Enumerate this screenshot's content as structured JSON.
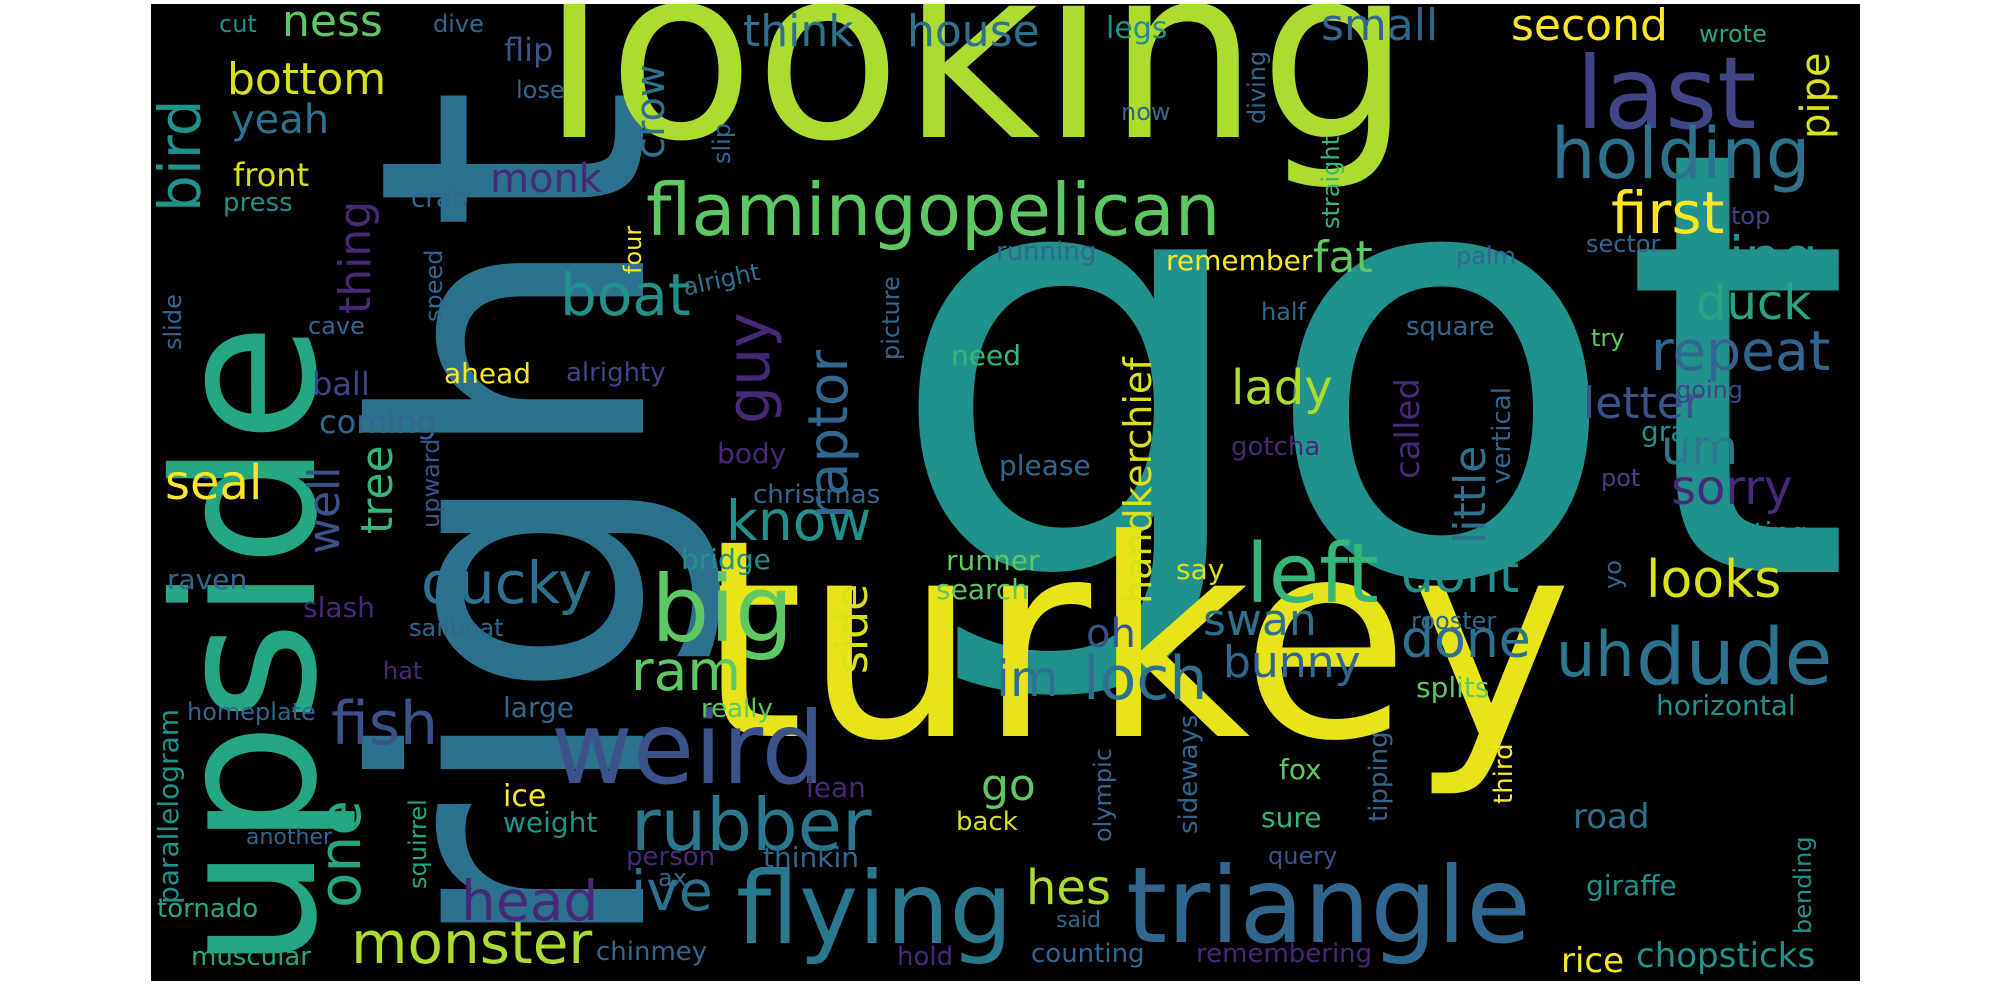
{
  "words": [
    {
      "text": "got",
      "color": "#21918c"
    },
    {
      "text": "turkey",
      "color": "#e7e419"
    },
    {
      "text": "right",
      "color": "#2c728e"
    },
    {
      "text": "looking",
      "color": "#addc30"
    },
    {
      "text": "upside",
      "color": "#26a784"
    },
    {
      "text": "triangle",
      "color": "#31678e"
    },
    {
      "text": "flying",
      "color": "#2a788e"
    },
    {
      "text": "weird",
      "color": "#3b528b"
    },
    {
      "text": "flamingopelican",
      "color": "#5ec962"
    },
    {
      "text": "last",
      "color": "#414487"
    },
    {
      "text": "holding",
      "color": "#2c728e"
    },
    {
      "text": "rubber",
      "color": "#2a788e"
    },
    {
      "text": "big",
      "color": "#5ec962"
    },
    {
      "text": "monster",
      "color": "#addc30"
    },
    {
      "text": "left",
      "color": "#35b779"
    },
    {
      "text": "dude",
      "color": "#2c728e"
    },
    {
      "text": "loch",
      "color": "#2c728e"
    },
    {
      "text": "bird",
      "color": "#21918c"
    },
    {
      "text": "first",
      "color": "#fde725"
    },
    {
      "text": "wing",
      "color": "#21918c"
    },
    {
      "text": "boat",
      "color": "#21918c"
    },
    {
      "text": "know",
      "color": "#21918c"
    },
    {
      "text": "ducky",
      "color": "#2c728e"
    },
    {
      "text": "fish",
      "color": "#3b528b"
    },
    {
      "text": "repeat",
      "color": "#31678e"
    },
    {
      "text": "one",
      "color": "#26a784"
    },
    {
      "text": "guy",
      "color": "#482878"
    },
    {
      "text": "raptor",
      "color": "#31678e"
    },
    {
      "text": "head",
      "color": "#482878"
    },
    {
      "text": "ive",
      "color": "#2c728e"
    },
    {
      "text": "hes",
      "color": "#addc30"
    },
    {
      "text": "ram",
      "color": "#5ec962"
    },
    {
      "text": "uh",
      "color": "#2a788e"
    },
    {
      "text": "dont",
      "color": "#21918c"
    },
    {
      "text": "looks",
      "color": "#d8e219"
    },
    {
      "text": "done",
      "color": "#2c728e"
    },
    {
      "text": "swan",
      "color": "#2c728e"
    },
    {
      "text": "bunny",
      "color": "#31678e"
    },
    {
      "text": "im",
      "color": "#2c728e"
    },
    {
      "text": "duck",
      "color": "#26a784"
    },
    {
      "text": "lady",
      "color": "#addc30"
    },
    {
      "text": "um",
      "color": "#2a788e"
    },
    {
      "text": "sorry",
      "color": "#482878"
    },
    {
      "text": "little",
      "color": "#2c728e"
    },
    {
      "text": "letter",
      "color": "#3b528b"
    },
    {
      "text": "fat",
      "color": "#5ec962"
    },
    {
      "text": "small",
      "color": "#31678e"
    },
    {
      "text": "second",
      "color": "#fde725"
    },
    {
      "text": "house",
      "color": "#2c728e"
    },
    {
      "text": "think",
      "color": "#2c728e"
    },
    {
      "text": "ness",
      "color": "#5ec962"
    },
    {
      "text": "bottom",
      "color": "#d8e219"
    },
    {
      "text": "yeah",
      "color": "#2c728e"
    },
    {
      "text": "monk",
      "color": "#482878"
    },
    {
      "text": "crow",
      "color": "#2c728e"
    },
    {
      "text": "thing",
      "color": "#482878"
    },
    {
      "text": "well",
      "color": "#3b528b"
    },
    {
      "text": "tree",
      "color": "#35b779"
    },
    {
      "text": "seal",
      "color": "#fde725"
    },
    {
      "text": "oh",
      "color": "#3b528b"
    },
    {
      "text": "side",
      "color": "#d8e219"
    },
    {
      "text": "go",
      "color": "#5ec962"
    },
    {
      "text": "handkerchief",
      "color": "#d8e219"
    },
    {
      "text": "pipe",
      "color": "#d8e219"
    },
    {
      "text": "called",
      "color": "#482878"
    },
    {
      "text": "chopsticks",
      "color": "#21918c"
    },
    {
      "text": "rice",
      "color": "#fde725"
    },
    {
      "text": "road",
      "color": "#2c728e"
    },
    {
      "text": "front",
      "color": "#d8e219"
    },
    {
      "text": "flip",
      "color": "#3b528b"
    },
    {
      "text": "legs",
      "color": "#21918c"
    },
    {
      "text": "cut",
      "color": "#21918c"
    },
    {
      "text": "dive",
      "color": "#31678e"
    },
    {
      "text": "wrote",
      "color": "#26a784"
    },
    {
      "text": "lose",
      "color": "#31678e"
    },
    {
      "text": "now",
      "color": "#31678e"
    },
    {
      "text": "diving",
      "color": "#31678e"
    },
    {
      "text": "slip",
      "color": "#31678e"
    },
    {
      "text": "straight",
      "color": "#35b779"
    },
    {
      "text": "top",
      "color": "#414487"
    },
    {
      "text": "sector",
      "color": "#31678e"
    },
    {
      "text": "press",
      "color": "#21918c"
    },
    {
      "text": "crab",
      "color": "#31678e"
    },
    {
      "text": "running",
      "color": "#31678e"
    },
    {
      "text": "remember",
      "color": "#fde725"
    },
    {
      "text": "palm",
      "color": "#31678e"
    },
    {
      "text": "four",
      "color": "#fde725"
    },
    {
      "text": "alright",
      "color": "#2c728e"
    },
    {
      "text": "picture",
      "color": "#31678e"
    },
    {
      "text": "speed",
      "color": "#31678e"
    },
    {
      "text": "slide",
      "color": "#31678e"
    },
    {
      "text": "cave",
      "color": "#31678e"
    },
    {
      "text": "need",
      "color": "#35b779"
    },
    {
      "text": "half",
      "color": "#31678e"
    },
    {
      "text": "square",
      "color": "#31678e"
    },
    {
      "text": "try",
      "color": "#5ec962"
    },
    {
      "text": "going",
      "color": "#414487"
    },
    {
      "text": "grant",
      "color": "#21918c"
    },
    {
      "text": "ahead",
      "color": "#fde725"
    },
    {
      "text": "alrighty",
      "color": "#414487"
    },
    {
      "text": "ball",
      "color": "#414487"
    },
    {
      "text": "coming",
      "color": "#31678e"
    },
    {
      "text": "vertical",
      "color": "#31678e"
    },
    {
      "text": "gotcha",
      "color": "#482878"
    },
    {
      "text": "please",
      "color": "#31678e"
    },
    {
      "text": "body",
      "color": "#482878"
    },
    {
      "text": "upward",
      "color": "#3b528b"
    },
    {
      "text": "christmas",
      "color": "#31678e"
    },
    {
      "text": "pot",
      "color": "#414487"
    },
    {
      "text": "skating",
      "color": "#21918c"
    },
    {
      "text": "bridge",
      "color": "#21918c"
    },
    {
      "text": "runner",
      "color": "#5ec962"
    },
    {
      "text": "search",
      "color": "#5ec962"
    },
    {
      "text": "say",
      "color": "#d8e219"
    },
    {
      "text": "yo",
      "color": "#31678e"
    },
    {
      "text": "raven",
      "color": "#31678e"
    },
    {
      "text": "slash",
      "color": "#482878"
    },
    {
      "text": "rooster",
      "color": "#31678e"
    },
    {
      "text": "sailboat",
      "color": "#31678e"
    },
    {
      "text": "parallelogram",
      "color": "#21918c"
    },
    {
      "text": "hat",
      "color": "#482878"
    },
    {
      "text": "large",
      "color": "#31678e"
    },
    {
      "text": "splits",
      "color": "#5ec962"
    },
    {
      "text": "horizontal",
      "color": "#21918c"
    },
    {
      "text": "homeplate",
      "color": "#31678e"
    },
    {
      "text": "really",
      "color": "#5ec962"
    },
    {
      "text": "olympic",
      "color": "#31678e"
    },
    {
      "text": "sideways",
      "color": "#31678e"
    },
    {
      "text": "tipping",
      "color": "#31678e"
    },
    {
      "text": "third",
      "color": "#fde725"
    },
    {
      "text": "fox",
      "color": "#5ec962"
    },
    {
      "text": "squirrel",
      "color": "#26a784"
    },
    {
      "text": "ice",
      "color": "#fde725"
    },
    {
      "text": "weight",
      "color": "#21918c"
    },
    {
      "text": "lean",
      "color": "#482878"
    },
    {
      "text": "sure",
      "color": "#35b779"
    },
    {
      "text": "back",
      "color": "#d8e219"
    },
    {
      "text": "another",
      "color": "#31678e"
    },
    {
      "text": "person",
      "color": "#482878"
    },
    {
      "text": "thinkin",
      "color": "#31678e"
    },
    {
      "text": "query",
      "color": "#3b528b"
    },
    {
      "text": "giraffe",
      "color": "#21918c"
    },
    {
      "text": "bending",
      "color": "#21918c"
    },
    {
      "text": "ax",
      "color": "#31678e"
    },
    {
      "text": "tornado",
      "color": "#26a784"
    },
    {
      "text": "said",
      "color": "#31678e"
    },
    {
      "text": "muscular",
      "color": "#26a784"
    },
    {
      "text": "chinmey",
      "color": "#31678e"
    },
    {
      "text": "hold",
      "color": "#482878"
    },
    {
      "text": "counting",
      "color": "#31678e"
    },
    {
      "text": "remembering",
      "color": "#482878"
    }
  ]
}
